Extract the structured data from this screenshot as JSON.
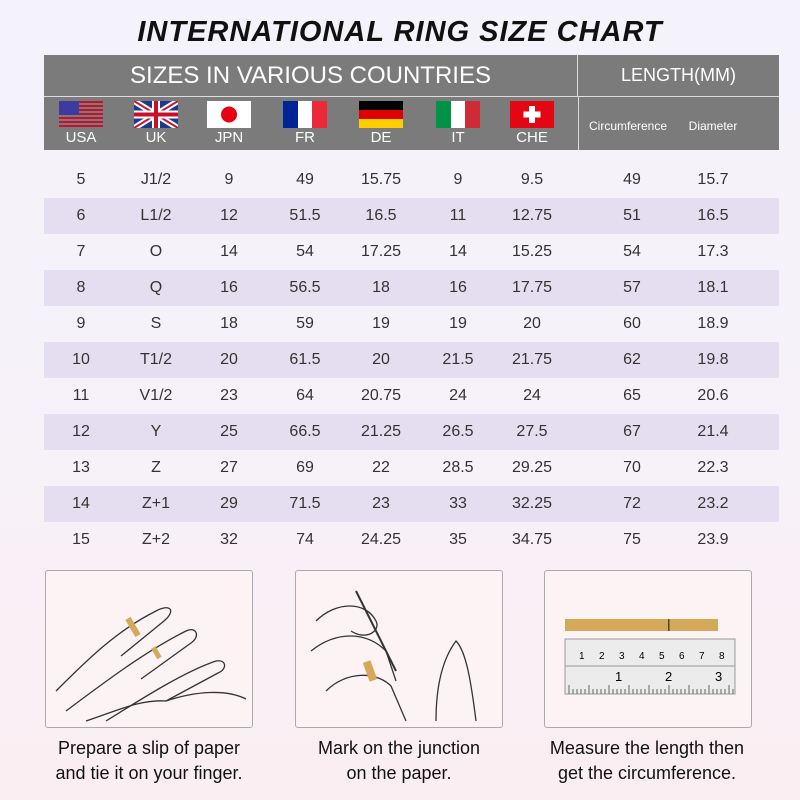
{
  "title": "INTERNATIONAL RING SIZE CHART",
  "header": {
    "countries_label": "SIZES IN VARIOUS COUNTRIES",
    "length_label": "LENGTH(MM)",
    "circumference": "Circumference",
    "diameter": "Diameter"
  },
  "countries": [
    {
      "code": "USA",
      "flag": "us-flag"
    },
    {
      "code": "UK",
      "flag": "uk-flag"
    },
    {
      "code": "JPN",
      "flag": "japan-flag"
    },
    {
      "code": "FR",
      "flag": "france-flag"
    },
    {
      "code": "DE",
      "flag": "germany-flag"
    },
    {
      "code": "IT",
      "flag": "italy-flag"
    },
    {
      "code": "CHE",
      "flag": "swiss-flag"
    }
  ],
  "colors": {
    "header_bg": "#7b7b7b",
    "row_shade": "#e5def0",
    "tape": "#d4a95a"
  },
  "rows": [
    [
      "5",
      "J1/2",
      "9",
      "49",
      "15.75",
      "9",
      "9.5",
      "49",
      "15.7"
    ],
    [
      "6",
      "L1/2",
      "12",
      "51.5",
      "16.5",
      "11",
      "12.75",
      "51",
      "16.5"
    ],
    [
      "7",
      "O",
      "14",
      "54",
      "17.25",
      "14",
      "15.25",
      "54",
      "17.3"
    ],
    [
      "8",
      "Q",
      "16",
      "56.5",
      "18",
      "16",
      "17.75",
      "57",
      "18.1"
    ],
    [
      "9",
      "S",
      "18",
      "59",
      "19",
      "19",
      "20",
      "60",
      "18.9"
    ],
    [
      "10",
      "T1/2",
      "20",
      "61.5",
      "20",
      "21.5",
      "21.75",
      "62",
      "19.8"
    ],
    [
      "11",
      "V1/2",
      "23",
      "64",
      "20.75",
      "24",
      "24",
      "65",
      "20.6"
    ],
    [
      "12",
      "Y",
      "25",
      "66.5",
      "21.25",
      "26.5",
      "27.5",
      "67",
      "21.4"
    ],
    [
      "13",
      "Z",
      "27",
      "69",
      "22",
      "28.5",
      "29.25",
      "70",
      "22.3"
    ],
    [
      "14",
      "Z+1",
      "29",
      "71.5",
      "23",
      "33",
      "32.25",
      "72",
      "23.2"
    ],
    [
      "15",
      "Z+2",
      "32",
      "74",
      "24.25",
      "35",
      "34.75",
      "75",
      "23.9"
    ]
  ],
  "steps": [
    {
      "line1": "Prepare a slip of paper",
      "line2": "and tie it on your finger."
    },
    {
      "line1": "Mark on the junction",
      "line2": "on the paper."
    },
    {
      "line1": "Measure the length then",
      "line2": "get the circumference."
    }
  ],
  "ruler": {
    "top_marks": [
      "1",
      "2",
      "3",
      "4",
      "5",
      "6",
      "7",
      "8"
    ],
    "bottom_marks": [
      "1",
      "2",
      "3"
    ]
  }
}
